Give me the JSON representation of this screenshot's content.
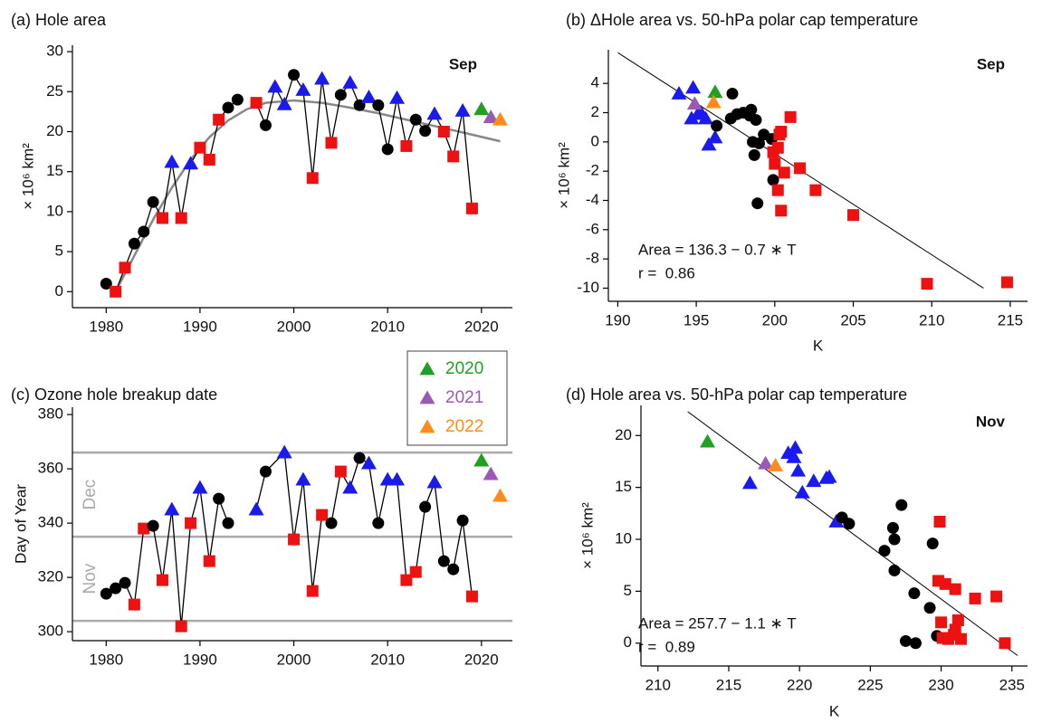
{
  "chart_data": [
    {
      "type": "line",
      "title": "(a) Hole area",
      "annotation": "Sep",
      "ylabel": "× 10⁶ km²",
      "xlim": [
        1976.4,
        2023.3
      ],
      "xticks": [
        1980,
        1990,
        2000,
        2010,
        2020
      ],
      "ylim": [
        -2,
        30.8
      ],
      "yticks": [
        0,
        5,
        10,
        15,
        20,
        25,
        30
      ],
      "marker_colors": {
        "circle": "#000000",
        "square": "#ee1111",
        "triangle": "#1a1aee"
      },
      "series": [
        {
          "color": "#000000",
          "x": [
            1980,
            1981,
            1982,
            1983,
            1984,
            1985,
            1986,
            1987,
            1988,
            1989,
            1990,
            1991,
            1992,
            1993,
            1994,
            1995,
            1996,
            1997,
            1998,
            1999,
            2000,
            2001,
            2002,
            2003,
            2004,
            2005,
            2006,
            2007,
            2008,
            2009,
            2010,
            2011,
            2012,
            2013,
            2014,
            2015,
            2016,
            2017,
            2018,
            2019
          ],
          "values": [
            1,
            0,
            3,
            6,
            7.5,
            11.2,
            9.2,
            16.2,
            9.2,
            16,
            18,
            16.5,
            21.5,
            23,
            24,
            null,
            23.6,
            20.8,
            25.6,
            23.4,
            27.1,
            25.2,
            14.2,
            26.6,
            18.6,
            24.6,
            26.1,
            23.3,
            24.3,
            23.3,
            17.8,
            24.2,
            18.2,
            21.5,
            20.1,
            22.2,
            20,
            16.9,
            22.6,
            10.4
          ],
          "markers": [
            "circle",
            "square",
            "square",
            "circle",
            "circle",
            "circle",
            "square",
            "triangle",
            "square",
            "triangle",
            "square",
            "square",
            "square",
            "circle",
            "circle",
            null,
            "square",
            "circle",
            "triangle",
            "triangle",
            "circle",
            "triangle",
            "square",
            "triangle",
            "square",
            "circle",
            "triangle",
            "circle",
            "triangle",
            "circle",
            "circle",
            "triangle",
            "square",
            "circle",
            "circle",
            "triangle",
            "square",
            "square",
            "triangle",
            "square"
          ]
        },
        {
          "x": [
            2020
          ],
          "values": [
            22.8
          ],
          "marker": "triangle",
          "color": "#22a022"
        },
        {
          "x": [
            2021
          ],
          "values": [
            21.8
          ],
          "marker": "triangle",
          "color": "#9b59b6"
        },
        {
          "x": [
            2022
          ],
          "values": [
            21.5
          ],
          "marker": "triangle",
          "color": "#ff8c1a"
        }
      ],
      "fit": {
        "color": "#888888",
        "x": [
          1981,
          1983,
          1985,
          1987,
          1989,
          1991,
          1993,
          1995,
          1997,
          2000,
          2003,
          2006,
          2009,
          2012,
          2015,
          2018,
          2022
        ],
        "values": [
          0,
          4.5,
          9,
          13,
          16.5,
          19.3,
          21.4,
          22.8,
          23.6,
          23.9,
          23.6,
          23,
          22.3,
          21.5,
          20.7,
          19.9,
          18.8
        ]
      }
    },
    {
      "type": "scatter",
      "title": "(b) ΔHole area vs. 50-hPa polar cap temperature",
      "annotation": "Sep",
      "equation": "Area = 136.3 − 0.7 ∗ T",
      "r_text": "r =  0.86",
      "xlabel": "K",
      "ylabel": "× 10⁶ km²",
      "xlim": [
        189.4,
        216.1
      ],
      "xticks": [
        190,
        195,
        200,
        205,
        210,
        215
      ],
      "ylim": [
        -10.9,
        6.3
      ],
      "yticks": [
        -10,
        -8,
        -6,
        -4,
        -2,
        0,
        2,
        4
      ],
      "series": [
        {
          "marker": "triangle",
          "color": "#1a1aee",
          "x": [
            193.9,
            194.8,
            194.7,
            195.3,
            195.6,
            195.8,
            196.2,
            195.1
          ],
          "values": [
            3.3,
            3.7,
            1.6,
            2.0,
            1.6,
            -0.2,
            0.3,
            1.9
          ]
        },
        {
          "marker": "circle",
          "color": "#000000",
          "x": [
            197.3,
            197.6,
            198.0,
            198.5,
            198.4,
            198.8,
            197.2,
            196.3,
            199.3,
            199.8,
            198.6,
            199.0,
            198.7,
            199.9,
            198.9
          ],
          "values": [
            3.3,
            1.9,
            2.0,
            2.2,
            1.8,
            1.5,
            1.6,
            1.1,
            0.5,
            0.2,
            0.0,
            -0.1,
            -0.9,
            -2.6,
            -4.2
          ]
        },
        {
          "marker": "square",
          "color": "#ee1111",
          "x": [
            201.0,
            200.4,
            200.3,
            199.9,
            200.2,
            200.0,
            200.6,
            201.6,
            200.2,
            202.6,
            200.4,
            205.0,
            209.7,
            214.8
          ],
          "values": [
            1.7,
            0.7,
            0.5,
            -0.7,
            -0.4,
            -1.5,
            -2.1,
            -1.8,
            -3.3,
            -3.3,
            -4.7,
            -5.0,
            -9.7,
            -9.6
          ]
        },
        {
          "marker": "triangle",
          "color": "#22a022",
          "x": [
            196.2
          ],
          "values": [
            3.4
          ]
        },
        {
          "marker": "triangle",
          "color": "#9b59b6",
          "x": [
            194.9
          ],
          "values": [
            2.6
          ]
        },
        {
          "marker": "triangle",
          "color": "#ff8c1a",
          "x": [
            196.1
          ],
          "values": [
            2.7
          ]
        }
      ],
      "fit": {
        "color": "#000000",
        "x": [
          190,
          213.3
        ],
        "values": [
          6.1,
          -10
        ]
      }
    },
    {
      "type": "line",
      "title": "(c) Ozone hole breakup date",
      "ylabel": "Day of Year",
      "xlim": [
        1976.4,
        2023.3
      ],
      "xticks": [
        1980,
        1990,
        2000,
        2010,
        2020
      ],
      "ylim": [
        296.7,
        382.7
      ],
      "yticks": [
        300,
        320,
        340,
        360,
        380
      ],
      "hlines": [
        304,
        335,
        366
      ],
      "hline_color": "#aaaaaa",
      "hline_labels": [
        "Nov",
        "Dec"
      ],
      "legend": "top-right",
      "marker_colors": {
        "circle": "#000000",
        "square": "#ee1111",
        "triangle": "#1a1aee"
      },
      "series": [
        {
          "color": "#000000",
          "x": [
            1980,
            1981,
            1982,
            1983,
            1984,
            1985,
            1986,
            1987,
            1988,
            1989,
            1990,
            1991,
            1992,
            1993,
            1994,
            1996,
            1997,
            1999,
            2000,
            2001,
            2002,
            2003,
            2004,
            2005,
            2006,
            2007,
            2008,
            2009,
            2010,
            2011,
            2012,
            2013,
            2014,
            2015,
            2016,
            2017,
            2018,
            2019
          ],
          "values": [
            314,
            316,
            318,
            310,
            338,
            339,
            319,
            345,
            302,
            340,
            353,
            326,
            349,
            340,
            null,
            345,
            359,
            366,
            334,
            356,
            315,
            343,
            340,
            359,
            353,
            364,
            362,
            340,
            356,
            356,
            319,
            322,
            346,
            355,
            326,
            323,
            341,
            313
          ],
          "markers": [
            "circle",
            "circle",
            "circle",
            "square",
            "square",
            "circle",
            "square",
            "triangle",
            "square",
            "square",
            "triangle",
            "square",
            "circle",
            "circle",
            null,
            "triangle",
            "circle",
            "triangle",
            "square",
            "triangle",
            "square",
            "square",
            "circle",
            "square",
            "triangle",
            "circle",
            "triangle",
            "circle",
            "triangle",
            "triangle",
            "square",
            "square",
            "circle",
            "triangle",
            "circle",
            "circle",
            "circle",
            "square"
          ]
        },
        {
          "name": "2020",
          "x": [
            2020
          ],
          "values": [
            363
          ],
          "marker": "triangle",
          "color": "#22a022"
        },
        {
          "name": "2021",
          "x": [
            2021
          ],
          "values": [
            358
          ],
          "marker": "triangle",
          "color": "#9b59b6"
        },
        {
          "name": "2022",
          "x": [
            2022
          ],
          "values": [
            350
          ],
          "marker": "triangle",
          "color": "#ff8c1a"
        }
      ]
    },
    {
      "type": "scatter",
      "title": "(d) Hole area vs. 50-hPa polar cap temperature",
      "annotation": "Nov",
      "equation": "Area = 257.7 − 1.1 ∗ T",
      "r_text": "r =  0.89",
      "xlabel": "K",
      "ylabel": "× 10⁶ km²",
      "xlim": [
        208.8,
        236.1
      ],
      "xticks": [
        210,
        215,
        220,
        225,
        230,
        235
      ],
      "ylim": [
        -2.2,
        22.9
      ],
      "yticks": [
        0,
        5,
        10,
        15,
        20
      ],
      "series": [
        {
          "marker": "triangle",
          "color": "#1a1aee",
          "x": [
            216.5,
            219.2,
            219.7,
            219.6,
            219.9,
            220.2,
            221.0,
            221.9,
            222.1,
            222.6
          ],
          "values": [
            15.4,
            18.3,
            18.8,
            17.9,
            16.6,
            14.5,
            15.6,
            15.9,
            16.0,
            11.7
          ]
        },
        {
          "marker": "circle",
          "color": "#000000",
          "x": [
            223.0,
            223.5,
            226.0,
            226.6,
            226.7,
            226.7,
            227.2,
            228.1,
            229.2,
            229.4,
            229.7,
            227.5,
            228.2
          ],
          "values": [
            12.1,
            11.5,
            8.9,
            11.1,
            10.0,
            7.0,
            13.3,
            4.8,
            3.4,
            9.6,
            0.7,
            0.2,
            0.0
          ]
        },
        {
          "marker": "square",
          "color": "#ee1111",
          "x": [
            229.8,
            230.3,
            231.0,
            229.9,
            230.0,
            230.1,
            230.5,
            230.9,
            231.2,
            231.0,
            231.4,
            232.4,
            233.9,
            234.5
          ],
          "values": [
            6.0,
            5.7,
            5.2,
            11.7,
            2.0,
            0.5,
            0.4,
            0.8,
            2.2,
            1.3,
            0.4,
            4.3,
            4.5,
            0.0
          ]
        },
        {
          "marker": "triangle",
          "color": "#22a022",
          "x": [
            213.5
          ],
          "values": [
            19.4
          ]
        },
        {
          "marker": "triangle",
          "color": "#9b59b6",
          "x": [
            217.6
          ],
          "values": [
            17.3
          ]
        },
        {
          "marker": "triangle",
          "color": "#ff8c1a",
          "x": [
            218.3
          ],
          "values": [
            17.1
          ]
        }
      ],
      "fit": {
        "color": "#000000",
        "x": [
          212.1,
          235.4
        ],
        "values": [
          22.3,
          -1.2
        ]
      }
    }
  ]
}
